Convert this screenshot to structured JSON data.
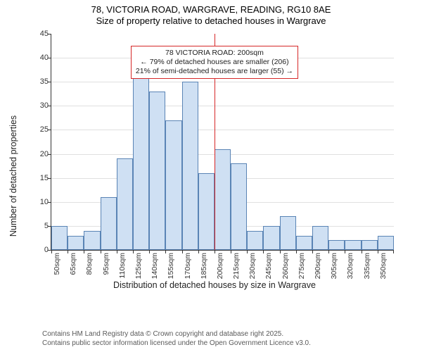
{
  "title_line1": "78, VICTORIA ROAD, WARGRAVE, READING, RG10 8AE",
  "title_line2": "Size of property relative to detached houses in Wargrave",
  "ylabel": "Number of detached properties",
  "xlabel": "Distribution of detached houses by size in Wargrave",
  "chart": {
    "type": "histogram",
    "bar_fill": "#cfe0f3",
    "bar_stroke": "#5a84b5",
    "background": "#ffffff",
    "grid_color": "#e0e0e0",
    "axis_color": "#333333",
    "marker_color": "#d62728",
    "ymin": 0,
    "ymax": 45,
    "ytick_step": 5,
    "bin_width_sqm": 15,
    "label_fontsize": 12.5,
    "tick_fontsize": 11,
    "bins": [
      {
        "label": "50sqm",
        "value": 5
      },
      {
        "label": "65sqm",
        "value": 3
      },
      {
        "label": "80sqm",
        "value": 4
      },
      {
        "label": "95sqm",
        "value": 11
      },
      {
        "label": "110sqm",
        "value": 19
      },
      {
        "label": "125sqm",
        "value": 37
      },
      {
        "label": "140sqm",
        "value": 33
      },
      {
        "label": "155sqm",
        "value": 27
      },
      {
        "label": "170sqm",
        "value": 35
      },
      {
        "label": "185sqm",
        "value": 16
      },
      {
        "label": "200sqm",
        "value": 21
      },
      {
        "label": "215sqm",
        "value": 18
      },
      {
        "label": "230sqm",
        "value": 4
      },
      {
        "label": "245sqm",
        "value": 5
      },
      {
        "label": "260sqm",
        "value": 7
      },
      {
        "label": "275sqm",
        "value": 3
      },
      {
        "label": "290sqm",
        "value": 5
      },
      {
        "label": "305sqm",
        "value": 2
      },
      {
        "label": "320sqm",
        "value": 2
      },
      {
        "label": "335sqm",
        "value": 2
      },
      {
        "label": "350sqm",
        "value": 3
      }
    ],
    "marker_bin_index": 10,
    "annotation": {
      "line1": "78 VICTORIA ROAD: 200sqm",
      "line2": "← 79% of detached houses are smaller (206)",
      "line3": "21% of semi-detached houses are larger (55) →",
      "box_top_value": 42.5
    }
  },
  "attribution": {
    "line1": "Contains HM Land Registry data © Crown copyright and database right 2025.",
    "line2": "Contains public sector information licensed under the Open Government Licence v3.0."
  }
}
